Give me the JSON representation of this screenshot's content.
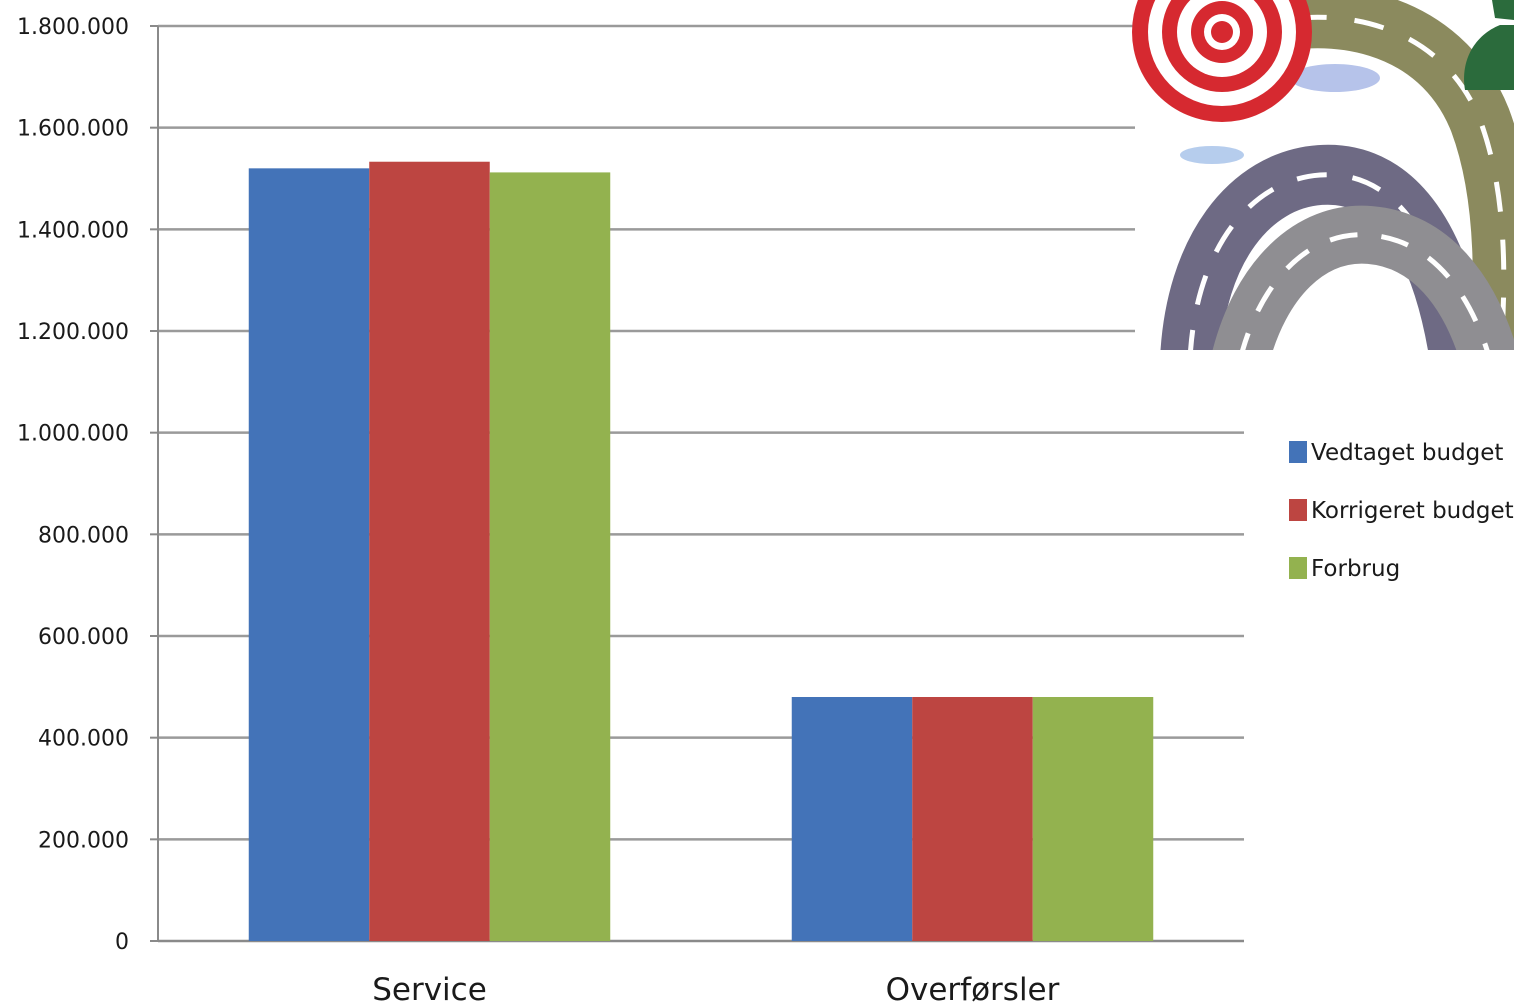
{
  "chart_data": {
    "type": "bar",
    "categories": [
      "Service",
      "Overførsler"
    ],
    "series": [
      {
        "name": "Vedtaget budget",
        "values": [
          1520000,
          480000
        ],
        "color": "#4373b8"
      },
      {
        "name": "Korrigeret budget",
        "values": [
          1533000,
          480000
        ],
        "color": "#bd4541"
      },
      {
        "name": "Forbrug",
        "values": [
          1512000,
          480000
        ],
        "color": "#93b24f"
      }
    ],
    "y_ticks": [
      "0",
      "200.000",
      "400.000",
      "600.000",
      "800.000",
      "1.000.000",
      "1.200.000",
      "1.400.000",
      "1.600.000",
      "1.800.000"
    ],
    "ylim": [
      0,
      1800000
    ],
    "ytick_step": 200000,
    "grid": true,
    "legend_position": "right",
    "title": "",
    "xlabel": "",
    "ylabel": ""
  },
  "illustration": {
    "icons": [
      "target-icon",
      "roads-icon"
    ]
  }
}
